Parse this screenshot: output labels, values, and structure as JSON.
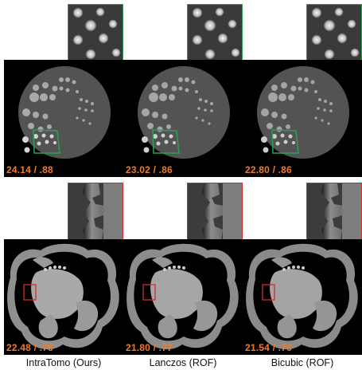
{
  "figure": {
    "columns": [
      {
        "label": "IntraTomo (Ours)",
        "phantom_metric": "24.14 / .88",
        "ct_metric": "22.48 / .78"
      },
      {
        "label": "Lanczos (ROF)",
        "phantom_metric": "23.02 / .86",
        "ct_metric": "21.80 / .77"
      },
      {
        "label": "Bicubic (ROF)",
        "phantom_metric": "22.80 / .86",
        "ct_metric": "21.54 / .76"
      }
    ],
    "colors": {
      "metric_text": "#f07b2a",
      "phantom_box": "#2e9e57",
      "ct_box": "#d62828"
    }
  }
}
